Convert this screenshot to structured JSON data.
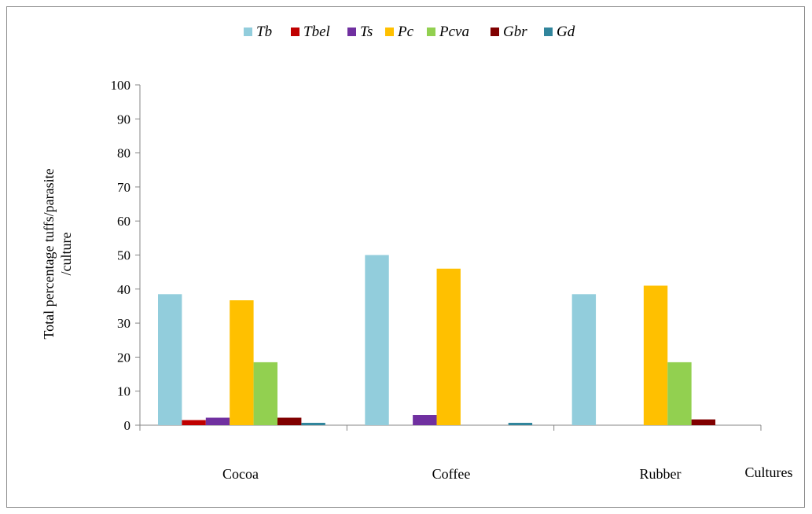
{
  "chart_data": {
    "type": "bar",
    "categories": [
      "Cocoa",
      "Coffee",
      "Rubber"
    ],
    "series": [
      {
        "name": "Tb",
        "color": "#92cddc",
        "values": [
          38.5,
          50,
          38.5
        ]
      },
      {
        "name": "Tbel",
        "color": "#c00000",
        "values": [
          1.5,
          0,
          0
        ]
      },
      {
        "name": "Ts",
        "color": "#7030a0",
        "values": [
          2.2,
          3,
          0
        ]
      },
      {
        "name": "Pc",
        "color": "#ffc000",
        "values": [
          36.7,
          46,
          41
        ]
      },
      {
        "name": "Pcva",
        "color": "#92d050",
        "values": [
          18.5,
          0,
          18.5
        ]
      },
      {
        "name": "Gbr",
        "color": "#800000",
        "values": [
          2.2,
          0,
          1.7
        ]
      },
      {
        "name": "Gd",
        "color": "#31859c",
        "values": [
          0.7,
          0.7,
          0
        ]
      }
    ],
    "ylabel_lines": [
      "Total percentage tuffs/parasite",
      "/culture"
    ],
    "xlabel": "Cultures",
    "ylim": [
      0,
      100
    ],
    "yticks": [
      0,
      10,
      20,
      30,
      40,
      50,
      60,
      70,
      80,
      90,
      100
    ],
    "legend_position": "top",
    "grid": false
  }
}
